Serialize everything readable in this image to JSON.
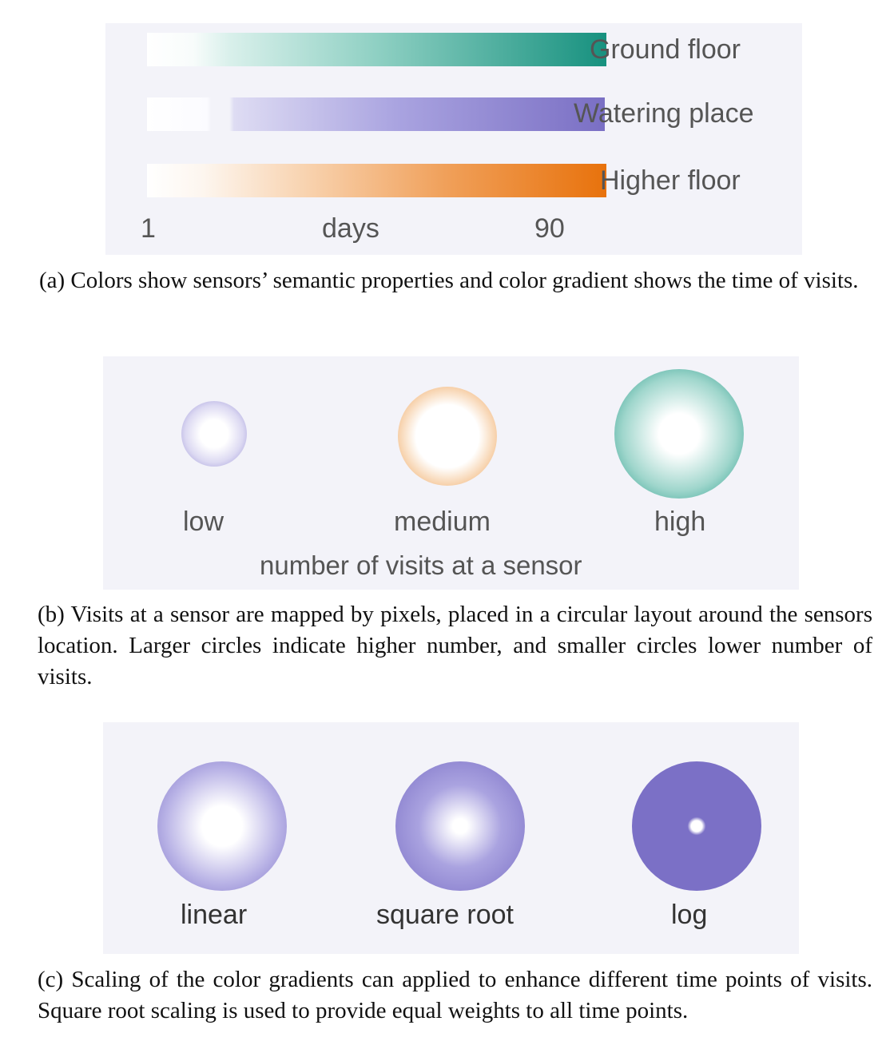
{
  "panel_a": {
    "legend": [
      {
        "label": "Ground floor",
        "color": "#17917f"
      },
      {
        "label": "Watering place",
        "color": "#7a6fc4"
      },
      {
        "label": "Higher floor",
        "color": "#e8720c"
      }
    ],
    "axis": {
      "min_label": "1",
      "unit_label": "days",
      "max_label": "90"
    },
    "caption": "(a) Colors show sensors’ semantic properties and color gradient shows the time of visits."
  },
  "panel_b": {
    "levels": [
      {
        "label": "low",
        "color": "#8f87d2"
      },
      {
        "label": "medium",
        "color": "#e8801e"
      },
      {
        "label": "high",
        "color": "#1b9483"
      }
    ],
    "axis_label": "number of visits at a sensor",
    "caption": "(b) Visits at a sensor are mapped by pixels, placed in a circular layout around the sensors location. Larger circles indicate higher number, and smaller circles lower number of visits."
  },
  "panel_c": {
    "scalings": [
      {
        "label": "linear",
        "color": "#7b70c6"
      },
      {
        "label": "square root",
        "color": "#7b70c6"
      },
      {
        "label": "log",
        "color": "#7b70c6"
      }
    ],
    "caption": "(c) Scaling of the color gradients can applied to enhance different time points of visits. Square root scaling is used to provide equal weights to all time points."
  }
}
